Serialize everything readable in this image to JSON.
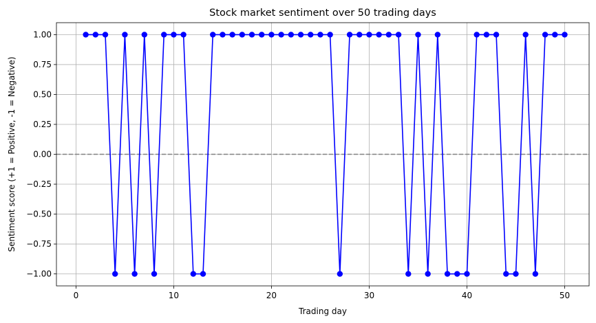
{
  "chart_data": {
    "type": "line",
    "title": "Stock market sentiment over 50 trading days",
    "xlabel": "Trading day",
    "ylabel": "Sentiment score (+1 = Positive, -1 = Negative)",
    "xlim": [
      -2,
      52.5
    ],
    "ylim": [
      -1.1,
      1.1
    ],
    "x_ticks": [
      0,
      10,
      20,
      30,
      40,
      50
    ],
    "y_ticks": [
      -1.0,
      -0.75,
      -0.5,
      -0.25,
      0.0,
      0.25,
      0.5,
      0.75,
      1.0
    ],
    "x_tick_labels": [
      "0",
      "10",
      "20",
      "30",
      "40",
      "50"
    ],
    "y_tick_labels": [
      "−1.00",
      "−0.75",
      "−0.50",
      "−0.25",
      "0.00",
      "0.25",
      "0.50",
      "0.75",
      "1.00"
    ],
    "grid": true,
    "reference_line": {
      "y": 0,
      "style": "dashed",
      "color": "#808080"
    },
    "series": [
      {
        "color": "#0000ff",
        "marker": "circle",
        "x": [
          1,
          2,
          3,
          4,
          5,
          6,
          7,
          8,
          9,
          10,
          11,
          12,
          13,
          14,
          15,
          16,
          17,
          18,
          19,
          20,
          21,
          22,
          23,
          24,
          25,
          26,
          27,
          28,
          29,
          30,
          31,
          32,
          33,
          34,
          35,
          36,
          37,
          38,
          39,
          40,
          41,
          42,
          43,
          44,
          45,
          46,
          47,
          48,
          49,
          50
        ],
        "values": [
          1,
          1,
          1,
          -1,
          1,
          -1,
          1,
          -1,
          1,
          1,
          1,
          -1,
          -1,
          1,
          1,
          1,
          1,
          1,
          1,
          1,
          1,
          1,
          1,
          1,
          1,
          1,
          -1,
          1,
          1,
          1,
          1,
          1,
          1,
          -1,
          1,
          -1,
          1,
          -1,
          -1,
          -1,
          1,
          1,
          1,
          -1,
          -1,
          1,
          -1,
          1,
          1,
          1
        ]
      }
    ]
  }
}
